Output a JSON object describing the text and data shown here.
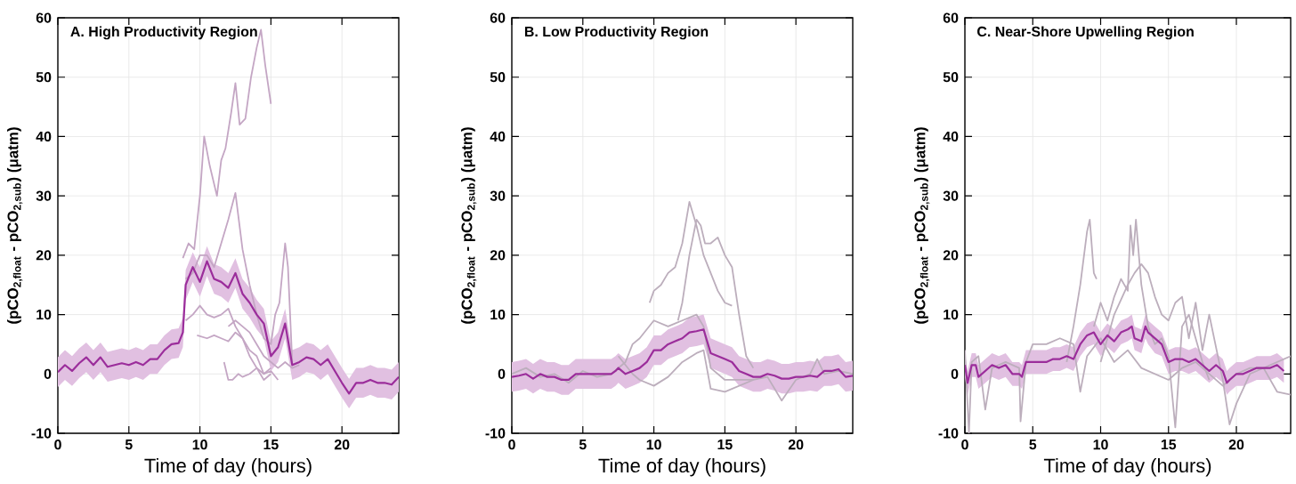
{
  "chart_data": [
    {
      "type": "line",
      "title": "A.   High Productivity Region",
      "xlabel": "Time of day (hours)",
      "ylabel": "(pCO$_{2,float}$  -  pCO$_{2,sub}$)  (μatm)",
      "xlim": [
        0,
        24
      ],
      "ylim": [
        -10,
        60
      ],
      "xticks": [
        0,
        5,
        10,
        15,
        20
      ],
      "yticks": [
        -10,
        0,
        10,
        20,
        30,
        40,
        50,
        60
      ],
      "grid": true,
      "series": [
        {
          "color": "#c4a6c4",
          "x": [
            8.8,
            9.2,
            9.6,
            10,
            10.3,
            10.7,
            11.2,
            11.5,
            11.8,
            12.2,
            12.5,
            12.8,
            13.2,
            13.6,
            14,
            14.3,
            14.6,
            15
          ],
          "values": [
            19.5,
            22,
            21,
            30,
            40,
            35,
            30,
            36,
            38,
            44,
            49,
            42,
            43,
            50,
            55,
            58,
            52,
            45.5
          ]
        },
        {
          "color": "#c4a6c4",
          "x": [
            9,
            9.5,
            10,
            10.5,
            11,
            11.5,
            12,
            12.5,
            13,
            13.5,
            14,
            14.5,
            15,
            15.3,
            15.6,
            16,
            16.2,
            16.5
          ],
          "values": [
            16,
            17,
            20,
            20,
            18,
            22,
            26,
            30.5,
            21,
            15,
            10,
            6,
            5,
            10,
            12,
            22,
            18,
            2
          ]
        },
        {
          "color": "#c4a6c4",
          "x": [
            9,
            9.5,
            10,
            10.5,
            11,
            11.5,
            12,
            12.5,
            13,
            13.5,
            14,
            14.5,
            15
          ],
          "values": [
            9,
            10,
            11.5,
            10,
            9.5,
            10,
            11,
            8,
            6,
            3,
            1,
            -1,
            0
          ]
        },
        {
          "color": "#c4a6c4",
          "x": [
            9.8,
            10.5,
            11,
            11.5,
            12,
            12.5,
            13,
            13.5,
            14,
            14.5,
            15
          ],
          "values": [
            6.5,
            6,
            6.5,
            6,
            5.5,
            7,
            6,
            4,
            3,
            0,
            1
          ]
        },
        {
          "color": "#c4a6c4",
          "x": [
            11.7,
            12,
            12.3,
            12.7,
            13,
            13.5,
            14,
            14.5,
            15,
            15.5
          ],
          "values": [
            2,
            -1,
            -1,
            0,
            -0.5,
            0,
            1,
            0,
            0.5,
            -1
          ]
        },
        {
          "color": "#c4a6c4",
          "x": [
            12,
            12.5,
            13,
            13.5,
            14,
            14.5,
            15,
            15.5,
            16,
            16.5,
            17
          ],
          "values": [
            8,
            9,
            8,
            7,
            5,
            3,
            2,
            1,
            2,
            1,
            1.5
          ]
        },
        {
          "color": "#9b2d9b",
          "x": [
            0,
            0.5,
            1,
            1.5,
            2,
            2.5,
            3,
            3.5,
            4,
            4.5,
            5,
            5.5,
            6,
            6.5,
            7,
            7.5,
            8,
            8.5,
            8.8,
            9,
            9.5,
            10,
            10.5,
            11,
            11.5,
            12,
            12.5,
            13,
            13.5,
            14,
            14.5,
            15,
            15.5,
            16,
            16.5,
            17,
            17.5,
            18,
            18.5,
            19,
            19.5,
            20,
            20.5,
            21,
            21.5,
            22,
            22.5,
            23,
            23.5,
            24
          ],
          "values": [
            0.3,
            1.5,
            0.5,
            1.8,
            2.8,
            1.5,
            2.8,
            1.2,
            1.5,
            1.8,
            1.5,
            2,
            1.5,
            2.5,
            2.5,
            4,
            5,
            5.2,
            7,
            15,
            18,
            15.5,
            19,
            16,
            15.5,
            14.5,
            17,
            13.5,
            12,
            10,
            8.5,
            3,
            4.5,
            8.5,
            1.5,
            2,
            2.8,
            2.5,
            1.5,
            2.5,
            0.5,
            -1.5,
            -3.3,
            -1.5,
            -1.5,
            -1,
            -1.5,
            -1.5,
            -1.8,
            -0.5
          ],
          "lower": [
            -2.2,
            -1,
            -2,
            -0.7,
            0.3,
            -1,
            0.3,
            -1.3,
            -1,
            -0.7,
            -1,
            -0.5,
            -1,
            0,
            0,
            1.5,
            2.5,
            2.7,
            4.5,
            12.5,
            15.5,
            13,
            16.5,
            13.5,
            13,
            12,
            14.5,
            11,
            9.5,
            7.5,
            6,
            0.5,
            2,
            6,
            -1,
            -0.5,
            0.3,
            0,
            -1,
            0,
            -2,
            -4,
            -5.8,
            -4,
            -4,
            -3.5,
            -4,
            -4,
            -4.3,
            -3
          ],
          "upper": [
            2.8,
            4,
            3,
            4.3,
            5.3,
            4,
            5.3,
            3.7,
            4,
            4.3,
            4,
            4.5,
            4,
            5,
            5,
            6.5,
            7.5,
            7.7,
            9.5,
            17.5,
            20.5,
            18,
            21.5,
            18.5,
            18,
            17,
            19.5,
            16,
            14.5,
            12.5,
            11,
            5.5,
            7,
            11,
            4,
            4.5,
            5.3,
            5,
            4,
            5,
            3,
            1,
            -0.8,
            1,
            1,
            1.5,
            1,
            1,
            0.7,
            2
          ]
        }
      ]
    },
    {
      "type": "line",
      "title": "B.   Low Productivity Region",
      "xlabel": "Time of day (hours)",
      "ylabel": "(pCO$_{2,float}$  -  pCO$_{2,sub}$)  (μatm)",
      "xlim": [
        0,
        24
      ],
      "ylim": [
        -10,
        60
      ],
      "xticks": [
        0,
        5,
        10,
        15,
        20
      ],
      "yticks": [
        -10,
        0,
        10,
        20,
        30,
        40,
        50,
        60
      ],
      "grid": true,
      "series": [
        {
          "color": "#bcaebc",
          "x": [
            9.7,
            10,
            10.5,
            11,
            11.5,
            12,
            12.5,
            13,
            13.5,
            14,
            14.5,
            15,
            15.5
          ],
          "values": [
            12,
            14,
            15,
            17,
            18,
            22,
            29,
            25,
            20,
            17,
            14,
            12,
            11.5
          ]
        },
        {
          "color": "#bcaebc",
          "x": [
            11.7,
            12,
            12.5,
            13,
            13.3,
            13.6,
            14,
            14.5,
            15,
            15.5,
            16,
            16.5,
            17
          ],
          "values": [
            9,
            12,
            20,
            26,
            25,
            22,
            22,
            23,
            20,
            18,
            10,
            3,
            1
          ]
        },
        {
          "color": "#bcaebc",
          "x": [
            0,
            1,
            2,
            3,
            4,
            5,
            6,
            7,
            8,
            8.5,
            9,
            10,
            11,
            12,
            13,
            13.5,
            14,
            15,
            16,
            17,
            18,
            19,
            20,
            21,
            21.5,
            22,
            23,
            24
          ],
          "values": [
            0,
            1,
            -0.5,
            0,
            -1.5,
            0.5,
            -0.5,
            0,
            2,
            5,
            6,
            9,
            8,
            9,
            10,
            8,
            1,
            -1,
            -1,
            -1,
            -0.5,
            -4.5,
            -1,
            0,
            2.5,
            0,
            0.5,
            0
          ]
        },
        {
          "color": "#bcaebc",
          "x": [
            7.5,
            8.5,
            9,
            10,
            11,
            12,
            13,
            13.5,
            14,
            15,
            16,
            17
          ],
          "values": [
            3,
            0,
            -1,
            -2,
            -0.5,
            2,
            3.5,
            4,
            -2.5,
            -3,
            -2,
            -1
          ]
        },
        {
          "color": "#9b2d9b",
          "x": [
            0,
            0.5,
            1,
            1.5,
            2,
            2.5,
            3,
            3.5,
            4,
            4.5,
            5,
            5.5,
            6,
            6.5,
            7,
            7.3,
            7.5,
            8,
            8.5,
            9,
            9.5,
            10,
            10.5,
            11,
            11.5,
            12,
            12.5,
            13,
            13.5,
            14,
            14.5,
            15,
            15.5,
            16,
            16.5,
            17,
            17.5,
            18,
            18.5,
            19,
            19.5,
            20,
            20.5,
            21,
            21.5,
            22,
            22.5,
            23,
            23.5,
            24
          ],
          "values": [
            -0.5,
            -0.3,
            0,
            -0.8,
            0,
            -0.5,
            -0.5,
            -1,
            -1,
            0,
            0,
            0,
            0,
            0,
            0,
            0.5,
            1,
            0,
            0.5,
            1,
            2,
            4,
            4,
            5,
            5.5,
            6,
            7,
            7.2,
            7.5,
            3.5,
            3,
            2.5,
            2,
            0.5,
            0,
            -0.5,
            -0.5,
            0,
            -0.3,
            -0.8,
            -0.8,
            -0.5,
            -0.5,
            -0.3,
            -0.5,
            0.5,
            0.5,
            0.8,
            -0.5,
            -0.3
          ],
          "lower": [
            -3,
            -2.8,
            -2.5,
            -3.3,
            -2.5,
            -3,
            -3,
            -3.5,
            -3.5,
            -2.5,
            -2.5,
            -2.5,
            -2.5,
            -2.5,
            -2.5,
            -2,
            -1.5,
            -2.5,
            -2,
            -1.5,
            -0.5,
            1.5,
            1.5,
            2.5,
            3,
            3.5,
            4.5,
            4.7,
            5,
            1,
            0.5,
            0,
            -0.5,
            -2,
            -2.5,
            -3,
            -3,
            -2.5,
            -2.8,
            -3.3,
            -3.3,
            -3,
            -3,
            -2.8,
            -3,
            -2,
            -2,
            -1.7,
            -3,
            -2.8
          ],
          "upper": [
            2,
            2.2,
            2.5,
            1.7,
            2.5,
            2,
            2,
            1.5,
            1.5,
            2.5,
            2.5,
            2.5,
            2.5,
            2.5,
            2.5,
            3,
            3.5,
            2.5,
            3,
            3.5,
            4.5,
            6.5,
            6.5,
            7.5,
            8,
            8.5,
            9.5,
            9.7,
            10,
            6,
            5.5,
            5,
            4.5,
            3,
            2.5,
            2,
            2,
            2.5,
            2.2,
            1.7,
            1.7,
            2,
            2,
            2.2,
            2,
            3,
            3,
            3.3,
            2,
            2.2
          ]
        }
      ]
    },
    {
      "type": "line",
      "title": "C.   Near-Shore Upwelling Region",
      "xlabel": "Time of day (hours)",
      "ylabel": "(pCO$_{2,float}$  -  pCO$_{2,sub}$)  (μatm)",
      "xlim": [
        0,
        24
      ],
      "ylim": [
        -10,
        60
      ],
      "xticks": [
        0,
        5,
        10,
        15,
        20
      ],
      "yticks": [
        -10,
        0,
        10,
        20,
        30,
        40,
        50,
        60
      ],
      "grid": true,
      "series": [
        {
          "color": "#bcaebc",
          "x": [
            7.5,
            8,
            8.5,
            9,
            9.2,
            9.5,
            9.7
          ],
          "values": [
            2,
            8,
            15,
            24,
            26,
            17,
            16
          ]
        },
        {
          "color": "#bcaebc",
          "x": [
            9.5,
            10,
            10.5,
            11,
            11.5,
            12,
            12.2,
            12.4,
            12.6,
            13,
            13.5,
            14,
            14.5,
            15,
            15.5,
            16,
            16.5,
            17,
            17.5,
            18
          ],
          "values": [
            8,
            12,
            9,
            13,
            16,
            14,
            25,
            20,
            26,
            15,
            8,
            5,
            6,
            3,
            -9,
            8,
            10,
            6,
            2,
            -1
          ]
        },
        {
          "color": "#bcaebc",
          "x": [
            10,
            11,
            12,
            12.5,
            13,
            13.5,
            14,
            14.5,
            15,
            15.5,
            16,
            16.5,
            17,
            17.5,
            18,
            19,
            19.5,
            20,
            21,
            22,
            23,
            24
          ],
          "values": [
            2,
            10,
            15,
            17,
            18.5,
            17,
            13,
            10,
            9,
            12,
            13,
            6,
            12,
            4,
            10,
            -1,
            -8.5,
            -5,
            0,
            1,
            2,
            3
          ]
        },
        {
          "color": "#bcaebc",
          "x": [
            0,
            0.3,
            0.5,
            1,
            1.5,
            2,
            3,
            4,
            4.1,
            4.5,
            5,
            6,
            7,
            8,
            8.5,
            9,
            10,
            11,
            12,
            13,
            14,
            15,
            16,
            17,
            18,
            19,
            20,
            21,
            22,
            23,
            24
          ],
          "values": [
            4,
            -10,
            2,
            3,
            -6,
            1,
            2,
            1,
            -8,
            2,
            5,
            5,
            6,
            5,
            -3,
            3,
            6,
            2,
            4,
            1,
            0,
            -1,
            1,
            2,
            0,
            -2,
            0,
            1,
            1,
            -3,
            -3.5
          ]
        },
        {
          "color": "#9b2d9b",
          "x": [
            0,
            0.2,
            0.5,
            0.8,
            1,
            1.5,
            2,
            2.5,
            3,
            3.5,
            4,
            4.2,
            4.5,
            5,
            5.5,
            6,
            6.5,
            7,
            7.5,
            8,
            8.5,
            9,
            9.5,
            10,
            10.5,
            11,
            11.5,
            12,
            12.3,
            12.5,
            13,
            13.3,
            13.5,
            14,
            14.5,
            15,
            15.5,
            16,
            16.5,
            17,
            17.5,
            18,
            18.5,
            19,
            19.3,
            19.5,
            20,
            20.5,
            21,
            21.5,
            22,
            22.5,
            23,
            23.5
          ],
          "values": [
            1.5,
            -1.5,
            1.5,
            1.5,
            -0.5,
            0.5,
            1.5,
            1,
            1.5,
            0,
            0,
            -0.5,
            2,
            2,
            2,
            2,
            2.5,
            2.5,
            3,
            2.5,
            5,
            6.5,
            7,
            5,
            6.5,
            5.5,
            7,
            7.5,
            8,
            6,
            5.5,
            8,
            7,
            6,
            5,
            2,
            2.5,
            2.5,
            2,
            2.5,
            1.5,
            0.5,
            1.5,
            0.5,
            -1.5,
            -1,
            0,
            0,
            0.5,
            1,
            1,
            1,
            1.5,
            0.5
          ],
          "lower": [
            -0.5,
            -3.5,
            -0.5,
            -0.5,
            -2.5,
            -1.5,
            -0.5,
            -1,
            -0.5,
            -2,
            -2,
            -2.5,
            0,
            0,
            0,
            0,
            0.5,
            0.5,
            1,
            0.5,
            3,
            4.5,
            5,
            3,
            4.5,
            3.5,
            5,
            5.5,
            6,
            4,
            3.5,
            6,
            5,
            3.5,
            3,
            0,
            0.5,
            0.5,
            0,
            0.5,
            -0.5,
            -1.5,
            -0.5,
            -1.5,
            -3.5,
            -3,
            -2,
            -2,
            -1.5,
            -1,
            -1,
            -1,
            -0.5,
            -1.5
          ],
          "upper": [
            3.5,
            0.5,
            3.5,
            3.5,
            1.5,
            2.5,
            3.5,
            3,
            3.5,
            2,
            2,
            1.5,
            4,
            4,
            4,
            4,
            4.5,
            4.5,
            5,
            4.5,
            7,
            8.5,
            9,
            7,
            8.5,
            7.5,
            9,
            9.5,
            10,
            8,
            7.5,
            10,
            9,
            8,
            7,
            4,
            4.5,
            4.5,
            4,
            4.5,
            3.5,
            2.5,
            3.5,
            2.5,
            0.5,
            1,
            2,
            2,
            2.5,
            3,
            3,
            3,
            3.5,
            2.5
          ]
        }
      ]
    }
  ]
}
